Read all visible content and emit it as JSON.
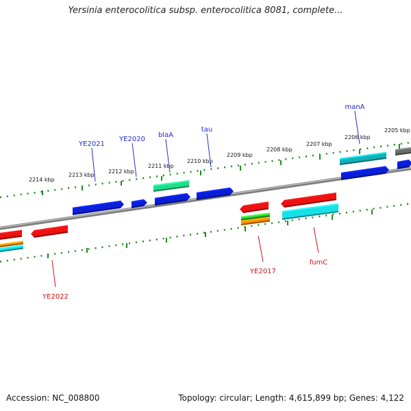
{
  "title": "Yersinia enterocolitica subsp. enterocolitica 8081, complete...",
  "footer": {
    "accession": "Accession: NC_008800",
    "summary": "Topology: circular; Length: 4,615,899 bp; Genes: 4,122"
  },
  "scale_labels": [
    "2214 kbp",
    "2213 kbp",
    "2212 kbp",
    "2211 kbp",
    "2210 kbp",
    "2209 kbp",
    "2208 kbp",
    "2207 kbp",
    "2206 kbp",
    "2205 kbp"
  ],
  "gene_labels": {
    "top": [
      "YE2021",
      "YE2020",
      "blaA",
      "tau",
      "manA"
    ],
    "bottom": [
      "YE2022",
      "YE2017",
      "fumC"
    ]
  },
  "colors": {
    "backbone": "#7f7f7f",
    "tick": "#1a8a1a",
    "top_label": "#1f2bd0",
    "bottom_label": "#d01010",
    "blue": "#0a1ed8",
    "red": "#ee1111",
    "cyan": "#19e0e6",
    "teal": "#12b0b8",
    "green": "#22dd88",
    "lime": "#33cc33",
    "orange": "#ff8c00",
    "gray": "#6a6a6a"
  }
}
